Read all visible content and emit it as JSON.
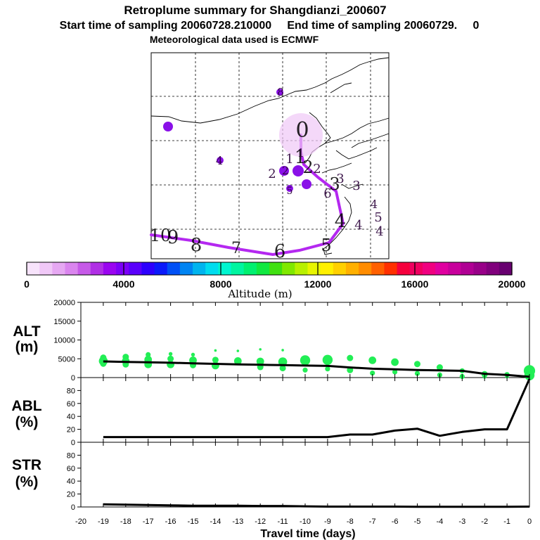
{
  "titles": {
    "title": "Retroplume summary for Shangdianzi_200607",
    "subtitle": "Start time of sampling 20060728.210000     End time of sampling 20060729.     0",
    "met": "Meteorological data used is ECMWF"
  },
  "colorbar": {
    "label": "Altitude (m)",
    "ticks": [
      "0",
      "4000",
      "8000",
      "12000",
      "16000",
      "20000"
    ],
    "colors": [
      "#f7e3fb",
      "#f0c8f7",
      "#e6a8f2",
      "#da85ee",
      "#c65ae8",
      "#b02fe5",
      "#9a05f0",
      "#7c00f7",
      "#5a00fb",
      "#2d00fd",
      "#0b1afa",
      "#0050f5",
      "#0084f2",
      "#00b4ee",
      "#00dcef",
      "#00f5d0",
      "#00f5a0",
      "#00f070",
      "#10e840",
      "#40e010",
      "#80e800",
      "#b8f000",
      "#e8f500",
      "#fff000",
      "#ffd000",
      "#ffb000",
      "#ff8c00",
      "#ff6000",
      "#ff3000",
      "#f5003c",
      "#f00060",
      "#f00080",
      "#e000a0",
      "#c8009c",
      "#b00094",
      "#980088",
      "#80007c",
      "#680070"
    ]
  },
  "map": {
    "day_labels": [
      {
        "text": "0",
        "big": true
      },
      {
        "text": "1",
        "big": true
      },
      {
        "text": "2",
        "big": true
      },
      {
        "text": "3",
        "big": true
      },
      {
        "text": "4",
        "big": true
      },
      {
        "text": "5",
        "big": true
      },
      {
        "text": "6",
        "big": true
      },
      {
        "text": "7",
        "big": true
      },
      {
        "text": "8",
        "big": true
      },
      {
        "text": "9",
        "big": true
      },
      {
        "text": "10",
        "big": true
      },
      {
        "text": "1",
        "big": false
      },
      {
        "text": "1",
        "big": false
      },
      {
        "text": "2",
        "big": false
      },
      {
        "text": "2",
        "big": false
      },
      {
        "text": "2",
        "big": false
      },
      {
        "text": "3",
        "big": false
      },
      {
        "text": "3",
        "big": false
      },
      {
        "text": "4",
        "big": false
      },
      {
        "text": "4",
        "big": false
      },
      {
        "text": "4",
        "big": false
      },
      {
        "text": "4",
        "big": false
      },
      {
        "text": "5",
        "big": false
      },
      {
        "text": "5",
        "big": false
      },
      {
        "text": "6",
        "big": false
      },
      {
        "text": "8",
        "big": false
      }
    ]
  },
  "chart_data": [
    {
      "type": "line",
      "panel": "ALT",
      "ylabel": "ALT (m)",
      "ylim": [
        0,
        20000
      ],
      "yticks": [
        0,
        5000,
        10000,
        15000,
        20000
      ],
      "xlabel": "Travel time (days)",
      "xlim": [
        -20,
        0
      ],
      "xticks": [
        -20,
        -19,
        -18,
        -17,
        -16,
        -15,
        -14,
        -13,
        -12,
        -11,
        -10,
        -9,
        -8,
        -7,
        -6,
        -5,
        -4,
        -3,
        -2,
        -1,
        0
      ],
      "series": [
        {
          "name": "mean altitude",
          "color": "#000000",
          "x": [
            -19,
            -18,
            -17,
            -16,
            -15,
            -14,
            -13,
            -12,
            -11,
            -10,
            -9,
            -8,
            -7,
            -6,
            -5,
            -4,
            -3,
            -2,
            -1,
            0
          ],
          "y": [
            4300,
            4150,
            4050,
            3950,
            3800,
            3650,
            3500,
            3400,
            3300,
            3200,
            3100,
            2700,
            2350,
            2200,
            2000,
            1900,
            1800,
            1000,
            700,
            200
          ]
        }
      ],
      "clusters": {
        "color": "#22ee55",
        "points": [
          [
            -19,
            5300,
            5
          ],
          [
            -19,
            4400,
            7
          ],
          [
            -19,
            3700,
            5
          ],
          [
            -18,
            5500,
            5
          ],
          [
            -18,
            4400,
            6
          ],
          [
            -18,
            3500,
            5
          ],
          [
            -17,
            6100,
            4
          ],
          [
            -17,
            4800,
            6
          ],
          [
            -17,
            3500,
            6
          ],
          [
            -16,
            6300,
            3
          ],
          [
            -16,
            5000,
            5
          ],
          [
            -16,
            3500,
            6
          ],
          [
            -15,
            6100,
            3
          ],
          [
            -15,
            4600,
            6
          ],
          [
            -15,
            3300,
            5
          ],
          [
            -14,
            7200,
            2
          ],
          [
            -14,
            4700,
            5
          ],
          [
            -14,
            3200,
            6
          ],
          [
            -13,
            7100,
            2
          ],
          [
            -13,
            4400,
            6
          ],
          [
            -12,
            7500,
            2
          ],
          [
            -12,
            4300,
            6
          ],
          [
            -12,
            2800,
            5
          ],
          [
            -11,
            7300,
            2
          ],
          [
            -11,
            4200,
            7
          ],
          [
            -11,
            2500,
            5
          ],
          [
            -10,
            4600,
            8
          ],
          [
            -10,
            2000,
            4
          ],
          [
            -9,
            4700,
            8
          ],
          [
            -9,
            2300,
            4
          ],
          [
            -8,
            5200,
            5
          ],
          [
            -8,
            2000,
            5
          ],
          [
            -7,
            4600,
            6
          ],
          [
            -7,
            1200,
            4
          ],
          [
            -6,
            4100,
            6
          ],
          [
            -6,
            1500,
            4
          ],
          [
            -5,
            3600,
            5
          ],
          [
            -5,
            1100,
            4
          ],
          [
            -4,
            2700,
            5
          ],
          [
            -4,
            700,
            4
          ],
          [
            -3,
            1800,
            4
          ],
          [
            -3,
            300,
            4
          ],
          [
            -2,
            900,
            5
          ],
          [
            -2,
            200,
            3
          ],
          [
            -1,
            800,
            4
          ],
          [
            -1,
            300,
            3
          ],
          [
            0,
            1800,
            9
          ],
          [
            0,
            600,
            8
          ]
        ]
      }
    },
    {
      "type": "line",
      "panel": "ABL",
      "ylabel": "ABL (%)",
      "ylim": [
        0,
        100
      ],
      "yticks": [
        0,
        20,
        40,
        60,
        80
      ],
      "series": [
        {
          "name": "ABL fraction",
          "color": "#000000",
          "x": [
            -19,
            -18,
            -17,
            -16,
            -15,
            -14,
            -13,
            -12,
            -11,
            -10,
            -9,
            -8,
            -7,
            -6,
            -5,
            -4,
            -3,
            -2,
            -1,
            0
          ],
          "y": [
            8,
            8,
            8,
            8,
            8,
            8,
            8,
            8,
            8,
            8,
            8,
            12,
            12,
            18,
            21,
            10,
            16,
            20,
            20,
            98
          ]
        }
      ]
    },
    {
      "type": "line",
      "panel": "STR",
      "ylabel": "STR (%)",
      "ylim": [
        0,
        100
      ],
      "yticks": [
        0,
        20,
        40,
        60,
        80
      ],
      "series": [
        {
          "name": "stratospheric fraction",
          "color": "#000000",
          "x": [
            -19,
            -18,
            -17,
            -16,
            -15,
            -14,
            -13,
            -12,
            -11,
            -10,
            -9,
            -8,
            -7,
            -6,
            -5,
            -4,
            -3,
            -2,
            -1,
            0
          ],
          "y": [
            4,
            3.5,
            3,
            2.5,
            2,
            2,
            2,
            1.5,
            1.5,
            1,
            0.5,
            0.5,
            0.5,
            0.5,
            0.3,
            0.3,
            0.3,
            0.3,
            0.3,
            0.5
          ]
        }
      ]
    }
  ],
  "labels": {
    "alt": [
      "ALT",
      "(m)"
    ],
    "abl": [
      "ABL",
      "(%)"
    ],
    "str": [
      "STR",
      "(%)"
    ],
    "xlabel": "Travel time (days)"
  }
}
